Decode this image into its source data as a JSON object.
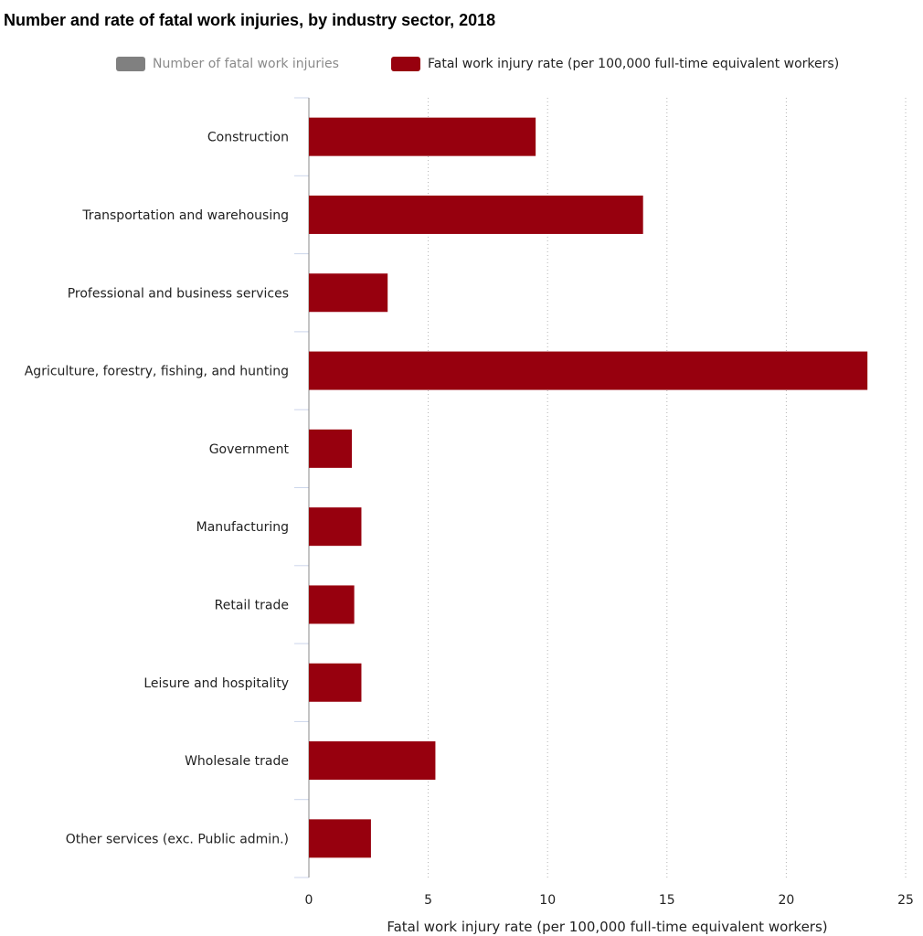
{
  "chart_data": {
    "type": "bar",
    "orientation": "horizontal",
    "title": "Number and rate of fatal work injuries, by industry sector, 2018",
    "legend": [
      {
        "name": "Number of fatal work injuries",
        "color": "#808080",
        "active": false
      },
      {
        "name": "Fatal work injury rate (per 100,000 full-time equivalent workers)",
        "color": "#97000e",
        "active": true
      }
    ],
    "legend_position": "top",
    "categories": [
      "Construction",
      "Transportation and warehousing",
      "Professional and business services",
      "Agriculture, forestry, fishing, and hunting",
      "Government",
      "Manufacturing",
      "Retail trade",
      "Leisure and hospitality",
      "Wholesale trade",
      "Other services (exc. Public admin.)"
    ],
    "series": [
      {
        "name": "Fatal work injury rate (per 100,000 full-time equivalent workers)",
        "values": [
          9.5,
          14.0,
          3.3,
          23.4,
          1.8,
          2.2,
          1.9,
          2.2,
          5.3,
          2.6
        ],
        "color": "#97000e"
      }
    ],
    "xlabel": "Fatal work injury rate (per 100,000 full-time equivalent workers)",
    "ylabel": "",
    "xlim": [
      0,
      25
    ],
    "xticks": [
      "0",
      "5",
      "10",
      "15",
      "20",
      "25"
    ],
    "grid": "vertical dotted"
  }
}
